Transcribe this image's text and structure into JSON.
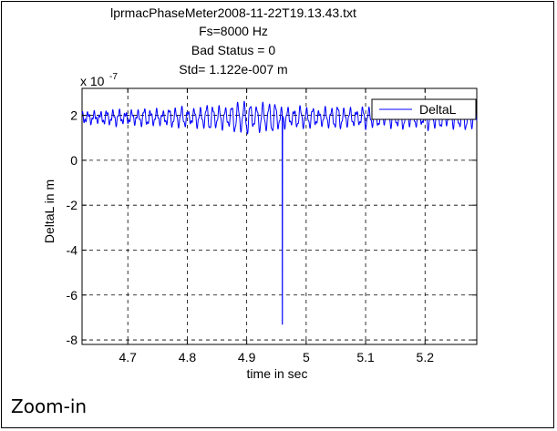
{
  "caption": "Zoom-in",
  "chart_data": {
    "type": "line",
    "title_lines": [
      "lprmacPhaseMeter2008-11-22T19.13.43.txt",
      "Fs=8000 Hz",
      "Bad Status = 0",
      "Std= 1.122e-007 m"
    ],
    "xlabel": "time in sec",
    "ylabel": "DeltaL  in m",
    "y_exponent_label": "x 10",
    "y_exponent_power": "-7",
    "xlim": [
      4.623,
      5.287
    ],
    "ylim": [
      -8.2,
      3.2
    ],
    "xticks": [
      4.7,
      4.8,
      4.9,
      5.0,
      5.1,
      5.2
    ],
    "xtick_labels": [
      "4.7",
      "4.8",
      "4.9",
      "5",
      "5.1",
      "5.2"
    ],
    "yticks": [
      2,
      0,
      -2,
      -4,
      -6,
      -8
    ],
    "ytick_labels": [
      "2",
      "0",
      "-2",
      "-4",
      "-6",
      "-8"
    ],
    "grid": true,
    "grid_style": "dashed",
    "legend_placement": "top-right",
    "series": [
      {
        "name": "DeltaL",
        "color": "#0000ff",
        "baseline": 1.9,
        "spike": {
          "x": 4.96,
          "y": -7.3
        },
        "envelope_x": [
          4.623,
          4.66,
          4.72,
          4.8,
          4.86,
          4.9,
          4.93,
          4.96,
          5.0,
          5.05,
          5.1,
          5.2,
          5.287
        ],
        "envelope_amplitude": [
          0.25,
          0.3,
          0.35,
          0.45,
          0.6,
          0.75,
          0.75,
          0.55,
          0.45,
          0.5,
          0.45,
          0.5,
          0.55
        ],
        "oscillation_period_sec": 0.0105
      }
    ]
  }
}
